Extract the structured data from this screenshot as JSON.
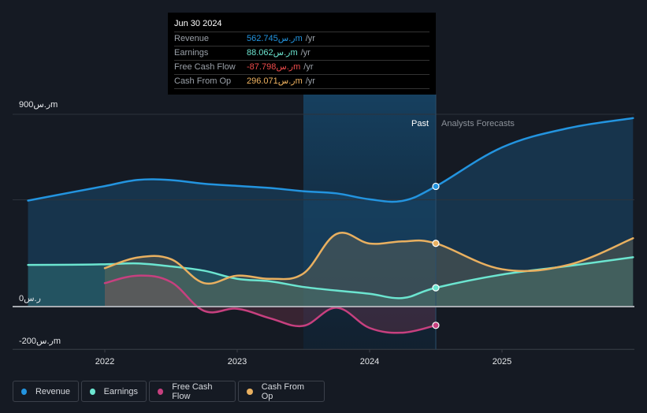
{
  "tooltip": {
    "date": "Jun 30 2024",
    "rows": [
      {
        "label": "Revenue",
        "value": "562.745ر.سm",
        "unit": "/yr",
        "color": "#2394df"
      },
      {
        "label": "Earnings",
        "value": "88.062ر.سm",
        "unit": "/yr",
        "color": "#6ce5d0"
      },
      {
        "label": "Free Cash Flow",
        "value": "-87.798ر.سm",
        "unit": "/yr",
        "color": "#ee4b4b"
      },
      {
        "label": "Cash From Op",
        "value": "296.071ر.سm",
        "unit": "/yr",
        "color": "#f0b360"
      }
    ]
  },
  "legend": [
    {
      "label": "Revenue",
      "color": "#2394df"
    },
    {
      "label": "Earnings",
      "color": "#6ce5d0"
    },
    {
      "label": "Free Cash Flow",
      "color": "#c7407f"
    },
    {
      "label": "Cash From Op",
      "color": "#e9b060"
    }
  ],
  "chart_data": {
    "type": "area",
    "title": "",
    "xlabel": "",
    "ylabel": "",
    "ylim": [
      -200,
      900
    ],
    "xlim": [
      2021.5,
      2025.99
    ],
    "x_ticks": [
      2022,
      2023,
      2024,
      2025
    ],
    "y_tick_labels": [
      {
        "value": 900,
        "label": "900ر.سm"
      },
      {
        "value": 0,
        "label": "0ر.س"
      },
      {
        "value": -200,
        "label": "-200ر.سm"
      }
    ],
    "gridlines": [
      900,
      500,
      0,
      -200
    ],
    "past_label": "Past",
    "forecast_label": "Analysts Forecasts",
    "divider_x": 2024.5,
    "highlight_range": [
      2023.5,
      2024.5
    ],
    "series": [
      {
        "name": "Revenue",
        "color": "#2394df",
        "points": [
          [
            2021.42,
            496
          ],
          [
            2021.75,
            535
          ],
          [
            2022.0,
            564
          ],
          [
            2022.25,
            593
          ],
          [
            2022.5,
            592
          ],
          [
            2022.75,
            575
          ],
          [
            2023.0,
            565
          ],
          [
            2023.25,
            555
          ],
          [
            2023.5,
            540
          ],
          [
            2023.75,
            530
          ],
          [
            2024.0,
            502
          ],
          [
            2024.25,
            495
          ],
          [
            2024.5,
            562.7
          ],
          [
            2025.0,
            745
          ],
          [
            2025.5,
            835
          ],
          [
            2025.99,
            882
          ]
        ]
      },
      {
        "name": "Earnings",
        "color": "#6ce5d0",
        "points": [
          [
            2021.42,
            195
          ],
          [
            2021.75,
            196
          ],
          [
            2022.0,
            198
          ],
          [
            2022.25,
            202
          ],
          [
            2022.5,
            188
          ],
          [
            2022.75,
            168
          ],
          [
            2023.0,
            130
          ],
          [
            2023.25,
            118
          ],
          [
            2023.5,
            92
          ],
          [
            2023.75,
            75
          ],
          [
            2024.0,
            60
          ],
          [
            2024.25,
            40
          ],
          [
            2024.5,
            88.1
          ],
          [
            2025.0,
            150
          ],
          [
            2025.5,
            190
          ],
          [
            2025.99,
            231
          ]
        ]
      },
      {
        "name": "Free Cash Flow",
        "color": "#c7407f",
        "points": [
          [
            2022.0,
            110
          ],
          [
            2022.25,
            145
          ],
          [
            2022.5,
            115
          ],
          [
            2022.75,
            -20
          ],
          [
            2023.0,
            -10
          ],
          [
            2023.25,
            -55
          ],
          [
            2023.5,
            -90
          ],
          [
            2023.75,
            -5
          ],
          [
            2024.0,
            -100
          ],
          [
            2024.25,
            -122
          ],
          [
            2024.5,
            -87.8
          ]
        ]
      },
      {
        "name": "Cash From Op",
        "color": "#e9b060",
        "points": [
          [
            2022.0,
            180
          ],
          [
            2022.25,
            230
          ],
          [
            2022.5,
            222
          ],
          [
            2022.75,
            110
          ],
          [
            2023.0,
            145
          ],
          [
            2023.25,
            130
          ],
          [
            2023.5,
            155
          ],
          [
            2023.75,
            340
          ],
          [
            2024.0,
            295
          ],
          [
            2024.25,
            305
          ],
          [
            2024.5,
            296.1
          ],
          [
            2025.0,
            175
          ],
          [
            2025.5,
            195
          ],
          [
            2025.99,
            320
          ]
        ]
      }
    ]
  }
}
